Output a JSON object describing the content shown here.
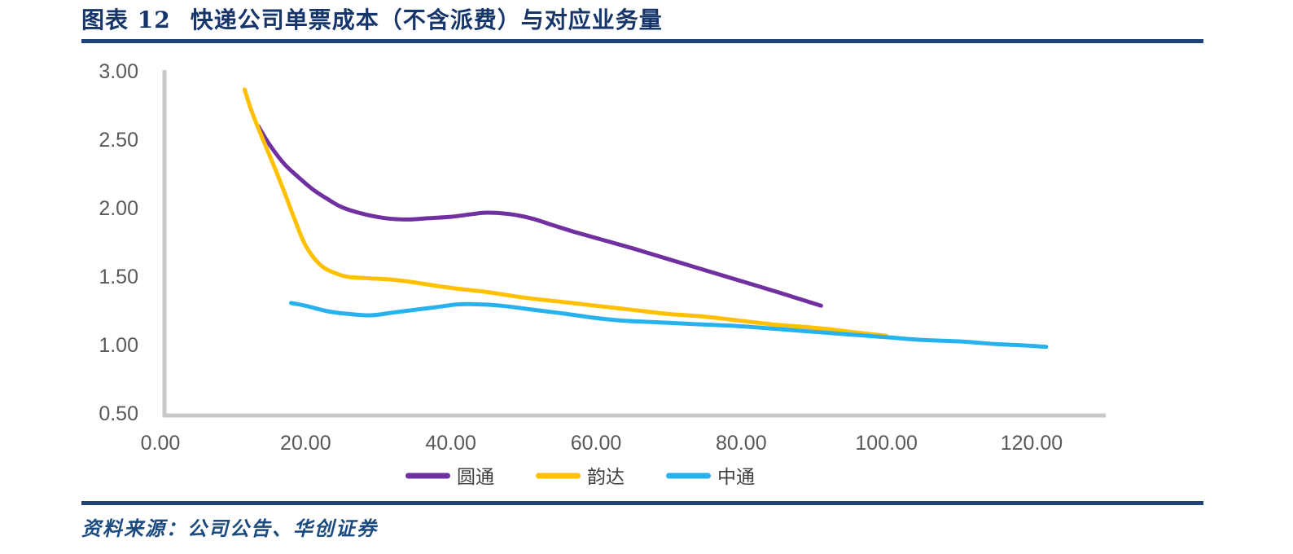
{
  "header": {
    "figure_label": "图表 12",
    "title": "快递公司单票成本（不含派费）与对应业务量"
  },
  "footer": {
    "source_label": "资料来源：",
    "source_value": "公司公告、华创证券"
  },
  "colors": {
    "title-navy": "#16356B",
    "rule-navy": "#1F4278",
    "source-navy": "#1A4A7E",
    "axis-line": "#C9C9C9",
    "axis-text": "#595959",
    "legend-text": "#3F3F3F"
  },
  "chart_data": {
    "type": "line",
    "title": "快递公司单票成本（不含派费）与对应业务量",
    "xlabel": "",
    "ylabel": "",
    "xlim": [
      0,
      130
    ],
    "ylim": [
      0.5,
      3.0
    ],
    "grid": false,
    "legend_position": "bottom",
    "x_ticks": [
      0,
      20,
      40,
      60,
      80,
      100,
      120
    ],
    "x_tick_labels": [
      "0.00",
      "20.00",
      "40.00",
      "60.00",
      "80.00",
      "100.00",
      "120.00"
    ],
    "y_ticks": [
      0.5,
      1.0,
      1.5,
      2.0,
      2.5,
      3.0
    ],
    "y_tick_labels": [
      "0.50",
      "1.00",
      "1.50",
      "2.00",
      "2.50",
      "3.00"
    ],
    "series": [
      {
        "name": "圆通",
        "color": "#7030A0",
        "points": [
          [
            13.5,
            2.6
          ],
          [
            15,
            2.47
          ],
          [
            17,
            2.33
          ],
          [
            19,
            2.23
          ],
          [
            21,
            2.14
          ],
          [
            23,
            2.07
          ],
          [
            25,
            2.01
          ],
          [
            28,
            1.96
          ],
          [
            31,
            1.93
          ],
          [
            34,
            1.92
          ],
          [
            37,
            1.93
          ],
          [
            40,
            1.94
          ],
          [
            43,
            1.96
          ],
          [
            45,
            1.97
          ],
          [
            48,
            1.96
          ],
          [
            51,
            1.93
          ],
          [
            54,
            1.88
          ],
          [
            57,
            1.83
          ],
          [
            61,
            1.77
          ],
          [
            65,
            1.71
          ],
          [
            70,
            1.63
          ],
          [
            75,
            1.55
          ],
          [
            80,
            1.47
          ],
          [
            85,
            1.39
          ],
          [
            88,
            1.34
          ],
          [
            91,
            1.29
          ]
        ]
      },
      {
        "name": "韵达",
        "color": "#FFC000",
        "points": [
          [
            11.6,
            2.87
          ],
          [
            12.5,
            2.72
          ],
          [
            14,
            2.52
          ],
          [
            15.5,
            2.33
          ],
          [
            17,
            2.13
          ],
          [
            18.5,
            1.92
          ],
          [
            20,
            1.73
          ],
          [
            22,
            1.59
          ],
          [
            24,
            1.53
          ],
          [
            26,
            1.5
          ],
          [
            29,
            1.49
          ],
          [
            32,
            1.48
          ],
          [
            35,
            1.46
          ],
          [
            40,
            1.42
          ],
          [
            45,
            1.39
          ],
          [
            50,
            1.35
          ],
          [
            55,
            1.32
          ],
          [
            60,
            1.29
          ],
          [
            65,
            1.26
          ],
          [
            70,
            1.23
          ],
          [
            75,
            1.21
          ],
          [
            80,
            1.18
          ],
          [
            85,
            1.15
          ],
          [
            90,
            1.13
          ],
          [
            95,
            1.1
          ],
          [
            100,
            1.07
          ]
        ]
      },
      {
        "name": "中通",
        "color": "#27B2EE",
        "points": [
          [
            18,
            1.31
          ],
          [
            20,
            1.29
          ],
          [
            23,
            1.25
          ],
          [
            26,
            1.23
          ],
          [
            29,
            1.22
          ],
          [
            32,
            1.24
          ],
          [
            35,
            1.26
          ],
          [
            38,
            1.28
          ],
          [
            41,
            1.3
          ],
          [
            44,
            1.3
          ],
          [
            47,
            1.29
          ],
          [
            50,
            1.27
          ],
          [
            53,
            1.25
          ],
          [
            56,
            1.23
          ],
          [
            60,
            1.2
          ],
          [
            64,
            1.18
          ],
          [
            68,
            1.17
          ],
          [
            72,
            1.16
          ],
          [
            76,
            1.15
          ],
          [
            80,
            1.14
          ],
          [
            85,
            1.12
          ],
          [
            90,
            1.1
          ],
          [
            95,
            1.08
          ],
          [
            100,
            1.06
          ],
          [
            105,
            1.04
          ],
          [
            110,
            1.03
          ],
          [
            115,
            1.01
          ],
          [
            119,
            1.0
          ],
          [
            122,
            0.99
          ]
        ]
      }
    ]
  }
}
